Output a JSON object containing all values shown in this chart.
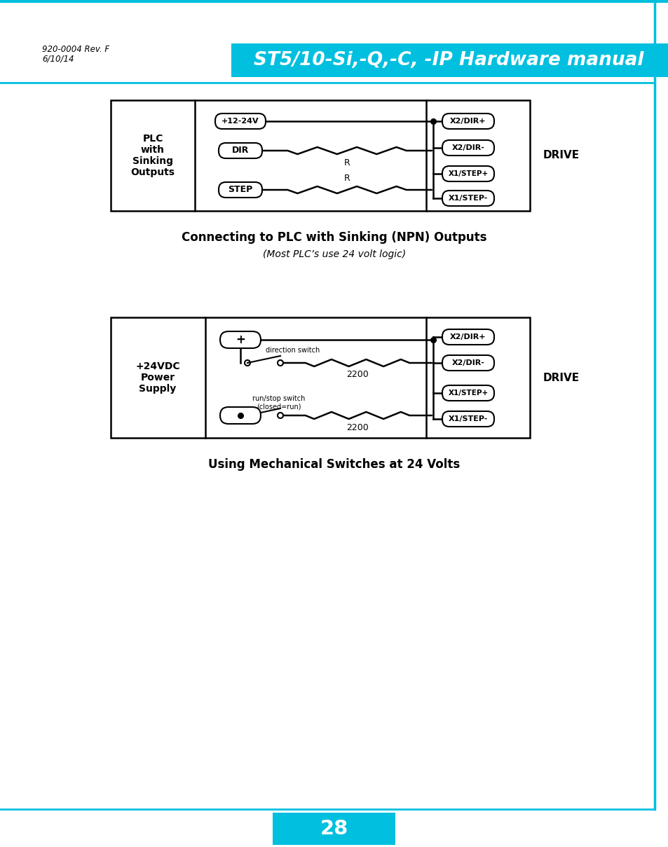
{
  "header_bg_color": "#00BFDF",
  "header_text": "ST5/10-Si,-Q,-C, -IP Hardware manual",
  "header_text_color": "#FFFFFF",
  "meta_line1": "920-0004 Rev. F",
  "meta_line2": "6/10/14",
  "meta_color": "#000000",
  "cyan_line_color": "#00BFDF",
  "page_number": "28",
  "page_number_bg": "#00BFDF",
  "diagram1_title": "Connecting to PLC with Sinking (NPN) Outputs",
  "diagram1_subtitle": "(Most PLC’s use 24 volt logic)",
  "diagram2_title": "Using Mechanical Switches at 24 Volts",
  "bg_color": "#FFFFFF"
}
